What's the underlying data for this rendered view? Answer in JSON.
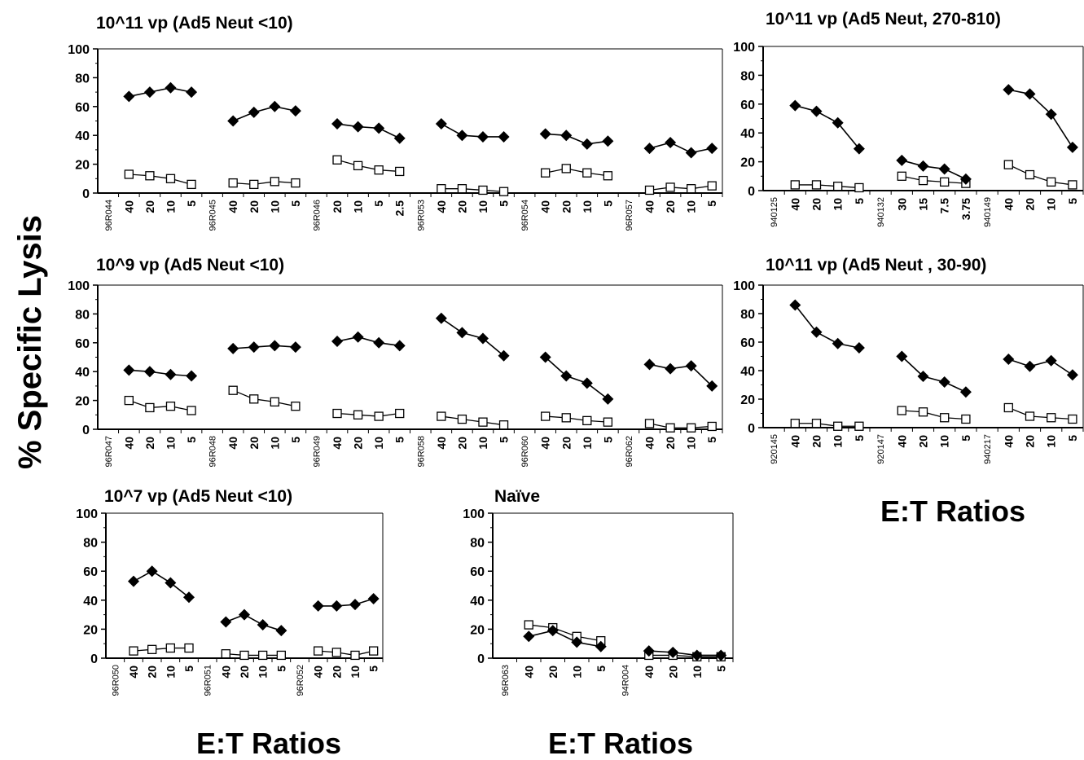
{
  "figure": {
    "ylabel": "% Specific Lysis",
    "xlabels": [
      "E:T Ratios",
      "E:T Ratios",
      "E:T Ratios"
    ]
  },
  "chart_data": [
    {
      "type": "line",
      "title": "10^11 vp (Ad5 Neut <10)",
      "ylim": [
        0,
        100
      ],
      "yticks": [
        0,
        20,
        40,
        60,
        80,
        100
      ],
      "groups": [
        {
          "label": "96R044",
          "ratios": [
            "40",
            "20",
            "10",
            "5"
          ],
          "filled": [
            67,
            70,
            73,
            70
          ],
          "open": [
            13,
            12,
            10,
            6
          ]
        },
        {
          "label": "96R045",
          "ratios": [
            "40",
            "20",
            "10",
            "5"
          ],
          "filled": [
            50,
            56,
            60,
            57
          ],
          "open": [
            7,
            6,
            8,
            7
          ]
        },
        {
          "label": "96R046",
          "ratios": [
            "20",
            "10",
            "5",
            "2.5"
          ],
          "filled": [
            48,
            46,
            45,
            38
          ],
          "open": [
            23,
            19,
            16,
            15
          ]
        },
        {
          "label": "96R053",
          "ratios": [
            "40",
            "20",
            "10",
            "5"
          ],
          "filled": [
            48,
            40,
            39,
            39
          ],
          "open": [
            3,
            3,
            2,
            1
          ]
        },
        {
          "label": "96R054",
          "ratios": [
            "40",
            "20",
            "10",
            "5"
          ],
          "filled": [
            41,
            40,
            34,
            36
          ],
          "open": [
            14,
            17,
            14,
            12
          ]
        },
        {
          "label": "96R057",
          "ratios": [
            "40",
            "20",
            "10",
            "5"
          ],
          "filled": [
            31,
            35,
            28,
            31
          ],
          "open": [
            2,
            4,
            3,
            5
          ]
        }
      ]
    },
    {
      "type": "line",
      "title": "10^11 vp (Ad5 Neut, 270-810)",
      "ylim": [
        0,
        100
      ],
      "yticks": [
        0,
        20,
        40,
        60,
        80,
        100
      ],
      "groups": [
        {
          "label": "940125",
          "ratios": [
            "40",
            "20",
            "10",
            "5"
          ],
          "filled": [
            59,
            55,
            47,
            29
          ],
          "open": [
            4,
            4,
            3,
            2
          ]
        },
        {
          "label": "940132",
          "ratios": [
            "30",
            "15",
            "7.5",
            "3.75"
          ],
          "filled": [
            21,
            17,
            15,
            8
          ],
          "open": [
            10,
            7,
            6,
            5
          ]
        },
        {
          "label": "940149",
          "ratios": [
            "40",
            "20",
            "10",
            "5"
          ],
          "filled": [
            70,
            67,
            53,
            30
          ],
          "open": [
            18,
            11,
            6,
            4
          ]
        }
      ]
    },
    {
      "type": "line",
      "title": "10^9 vp (Ad5 Neut <10)",
      "ylim": [
        0,
        100
      ],
      "yticks": [
        0,
        20,
        40,
        60,
        80,
        100
      ],
      "groups": [
        {
          "label": "96R047",
          "ratios": [
            "40",
            "20",
            "10",
            "5"
          ],
          "filled": [
            41,
            40,
            38,
            37
          ],
          "open": [
            20,
            15,
            16,
            13
          ]
        },
        {
          "label": "96R048",
          "ratios": [
            "40",
            "20",
            "10",
            "5"
          ],
          "filled": [
            56,
            57,
            58,
            57
          ],
          "open": [
            27,
            21,
            19,
            16
          ]
        },
        {
          "label": "96R049",
          "ratios": [
            "40",
            "20",
            "10",
            "5"
          ],
          "filled": [
            61,
            64,
            60,
            58
          ],
          "open": [
            11,
            10,
            9,
            11
          ]
        },
        {
          "label": "96R058",
          "ratios": [
            "40",
            "20",
            "10",
            "5"
          ],
          "filled": [
            77,
            67,
            63,
            51
          ],
          "open": [
            9,
            7,
            5,
            3
          ]
        },
        {
          "label": "96R060",
          "ratios": [
            "40",
            "20",
            "10",
            "5"
          ],
          "filled": [
            50,
            37,
            32,
            21
          ],
          "open": [
            9,
            8,
            6,
            5
          ]
        },
        {
          "label": "96R062",
          "ratios": [
            "40",
            "20",
            "10",
            "5"
          ],
          "filled": [
            45,
            42,
            44,
            30
          ],
          "open": [
            4,
            1,
            1,
            2
          ]
        }
      ]
    },
    {
      "type": "line",
      "title": "10^11 vp (Ad5 Neut , 30-90)",
      "ylim": [
        0,
        100
      ],
      "yticks": [
        0,
        20,
        40,
        60,
        80,
        100
      ],
      "groups": [
        {
          "label": "920145",
          "ratios": [
            "40",
            "20",
            "10",
            "5"
          ],
          "filled": [
            86,
            67,
            59,
            56
          ],
          "open": [
            3,
            3,
            1,
            1
          ]
        },
        {
          "label": "920147",
          "ratios": [
            "40",
            "20",
            "10",
            "5"
          ],
          "filled": [
            50,
            36,
            32,
            25
          ],
          "open": [
            12,
            11,
            7,
            6
          ]
        },
        {
          "label": "940217",
          "ratios": [
            "40",
            "20",
            "10",
            "5"
          ],
          "filled": [
            48,
            43,
            47,
            37
          ],
          "open": [
            14,
            8,
            7,
            6
          ]
        }
      ]
    },
    {
      "type": "line",
      "title": "10^7 vp (Ad5 Neut <10)",
      "ylim": [
        0,
        100
      ],
      "yticks": [
        0,
        20,
        40,
        60,
        80,
        100
      ],
      "groups": [
        {
          "label": "96R050",
          "ratios": [
            "40",
            "20",
            "10",
            "5"
          ],
          "filled": [
            53,
            60,
            52,
            42
          ],
          "open": [
            5,
            6,
            7,
            7
          ]
        },
        {
          "label": "96R051",
          "ratios": [
            "40",
            "20",
            "10",
            "5"
          ],
          "filled": [
            25,
            30,
            23,
            19
          ],
          "open": [
            3,
            2,
            2,
            2
          ]
        },
        {
          "label": "96R052",
          "ratios": [
            "40",
            "20",
            "10",
            "5"
          ],
          "filled": [
            36,
            36,
            37,
            41
          ],
          "open": [
            5,
            4,
            2,
            5
          ]
        }
      ]
    },
    {
      "type": "line",
      "title": "Naïve",
      "ylim": [
        0,
        100
      ],
      "yticks": [
        0,
        20,
        40,
        60,
        80,
        100
      ],
      "groups": [
        {
          "label": "96R063",
          "ratios": [
            "40",
            "20",
            "10",
            "5"
          ],
          "filled": [
            15,
            19,
            11,
            8
          ],
          "open": [
            23,
            21,
            15,
            12
          ]
        },
        {
          "label": "94R004",
          "ratios": [
            "40",
            "20",
            "10",
            "5"
          ],
          "filled": [
            5,
            4,
            2,
            2
          ],
          "open": [
            2,
            2,
            1,
            1
          ]
        }
      ]
    }
  ]
}
